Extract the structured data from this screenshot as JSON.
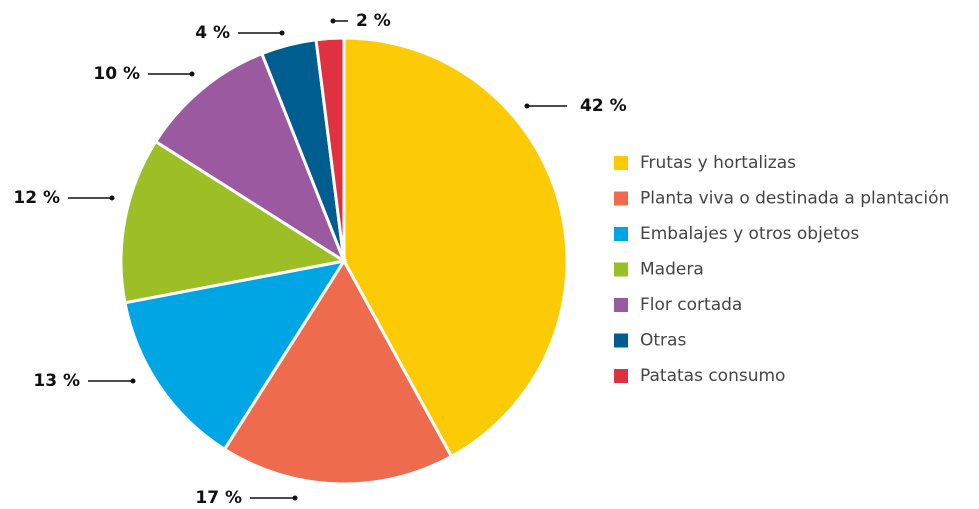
{
  "chart_data": {
    "type": "pie",
    "categories": [
      "Frutas y hortalizas",
      "Planta viva o destinada a plantación",
      "Embalajes y otros objetos",
      "Madera",
      "Flor cortada",
      "Otras",
      "Patatas consumo"
    ],
    "values": [
      42,
      17,
      13,
      12,
      10,
      4,
      2
    ],
    "value_labels": [
      "42 %",
      "17 %",
      "13 %",
      "12 %",
      "10 %",
      "4 %",
      "2 %"
    ],
    "colors": [
      "#fccb06",
      "#ee6c4d",
      "#00a6e4",
      "#9bbf24",
      "#9b59a0",
      "#005d8f",
      "#e03140"
    ],
    "legend": "right"
  }
}
